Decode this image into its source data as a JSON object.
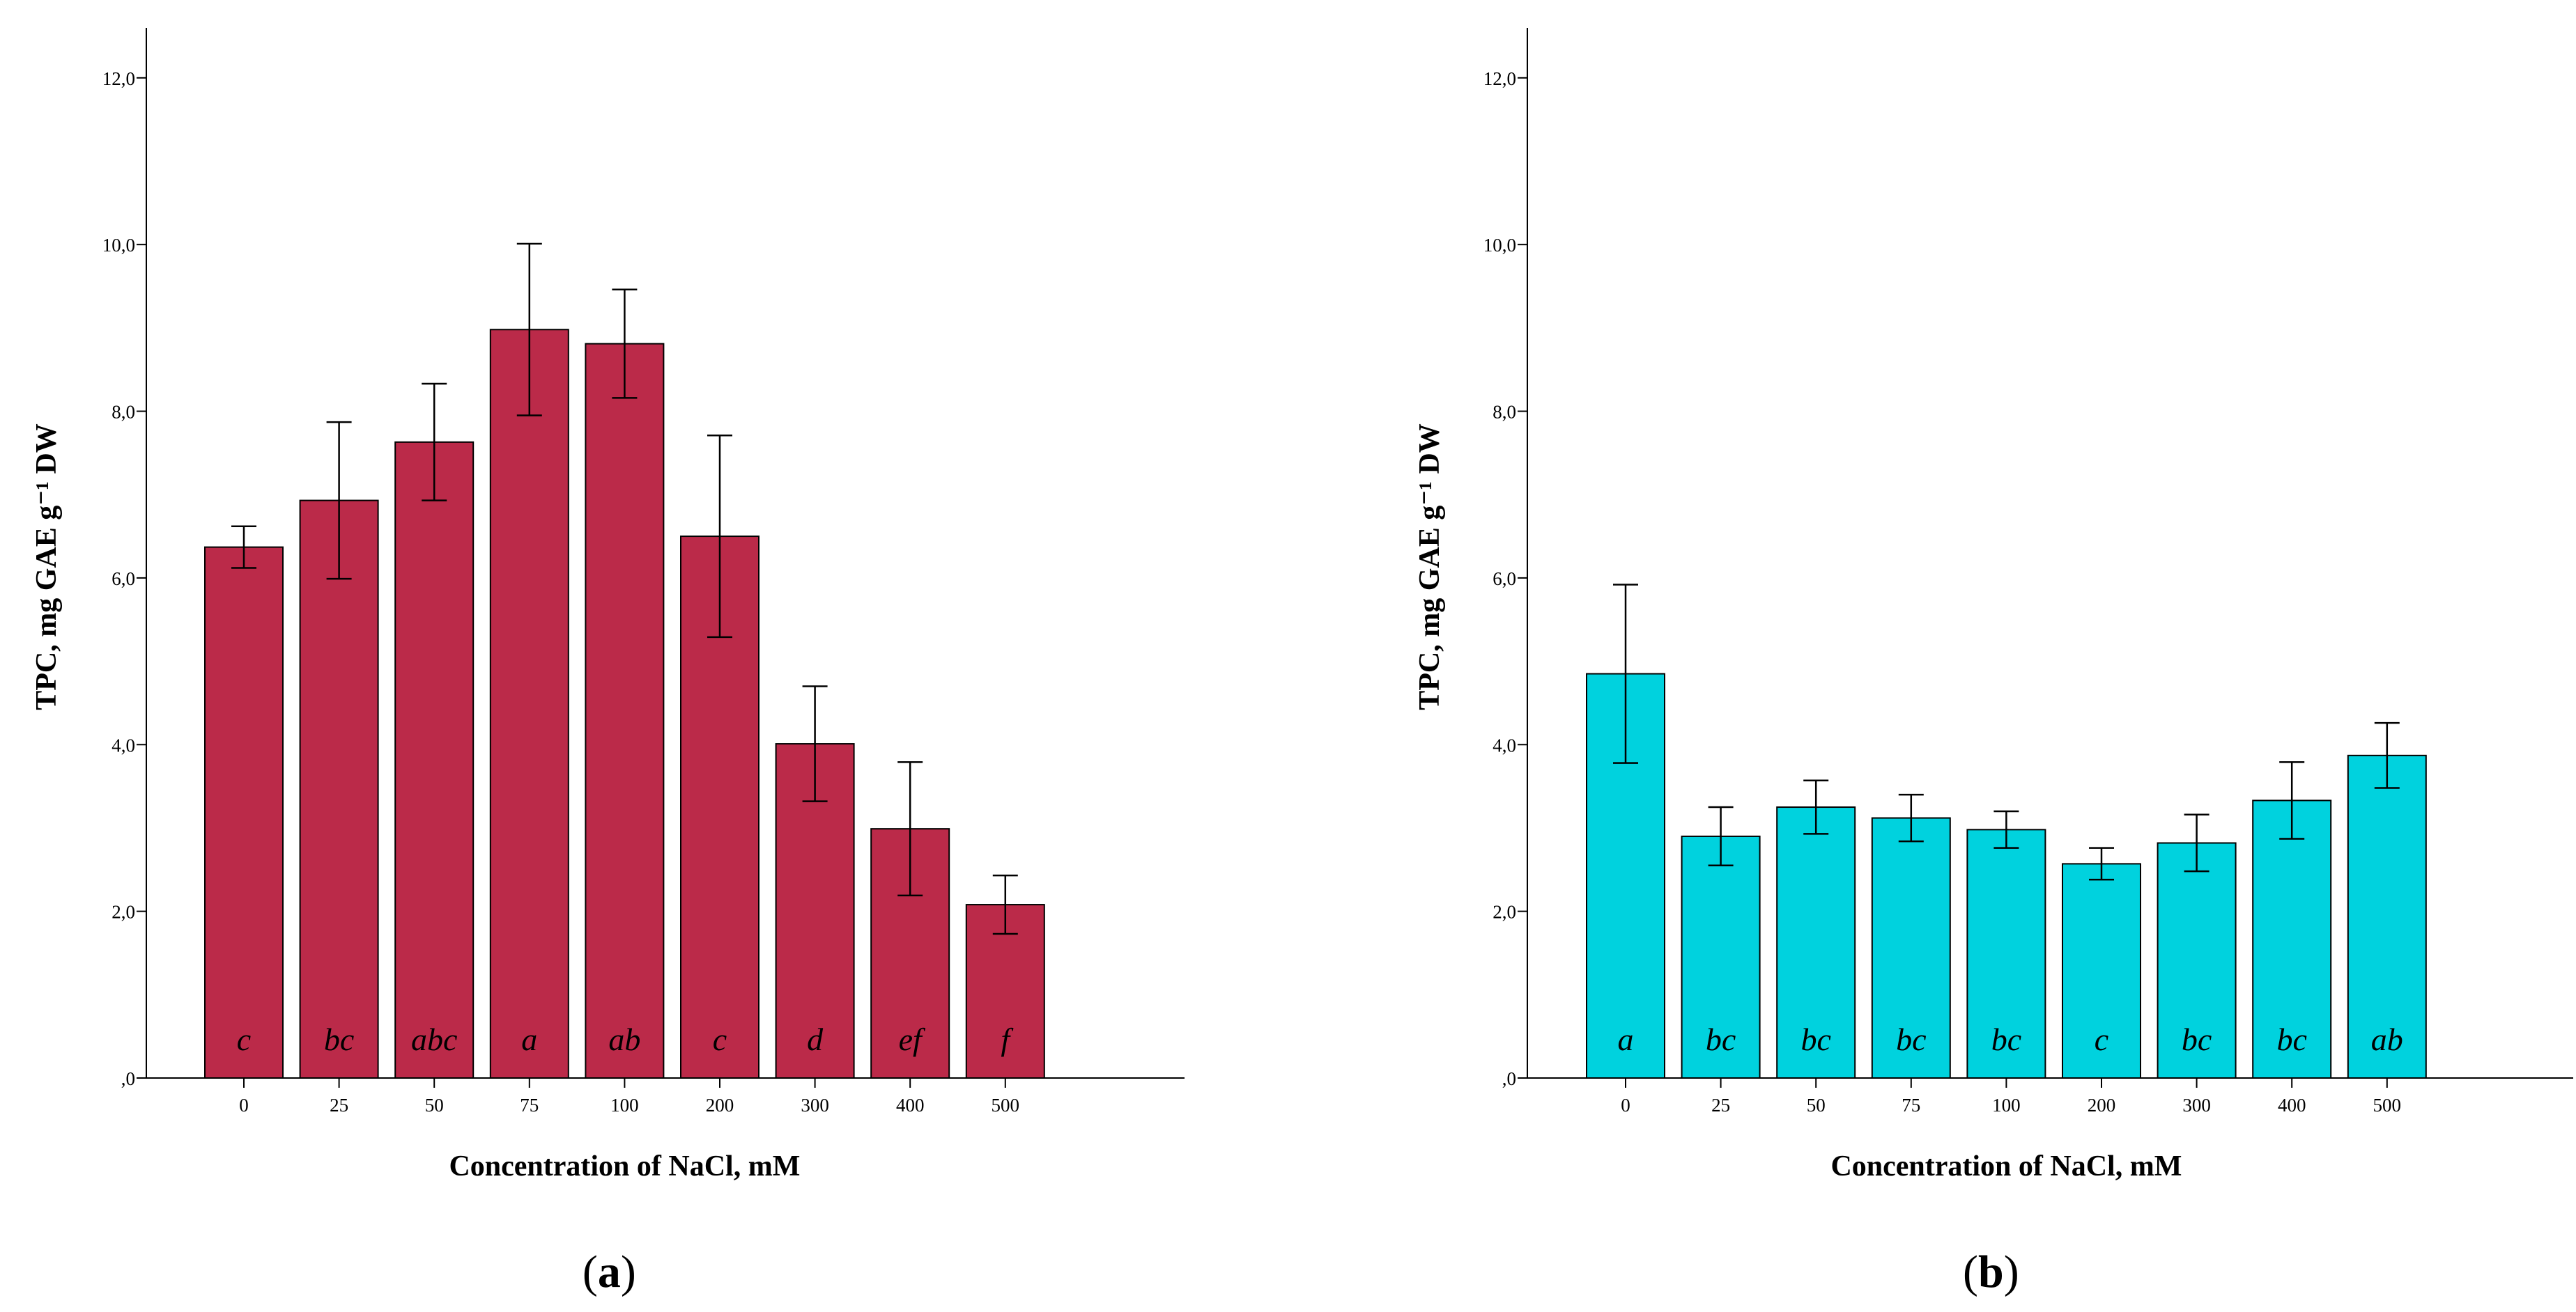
{
  "chart_data": [
    {
      "type": "bar",
      "panel_label": "a",
      "title": "",
      "xlabel": "Concentration of NaCl, mM",
      "ylabel": "TPC, mg GAE g⁻¹ DW",
      "ylim": [
        0,
        12.6
      ],
      "yticks": [
        {
          "value": 0,
          "label": ",0"
        },
        {
          "value": 2,
          "label": "2,0"
        },
        {
          "value": 4,
          "label": "4,0"
        },
        {
          "value": 6,
          "label": "6,0"
        },
        {
          "value": 8,
          "label": "8,0"
        },
        {
          "value": 10,
          "label": "10,0"
        },
        {
          "value": 12,
          "label": "12,0"
        }
      ],
      "categories": [
        "0",
        "25",
        "50",
        "75",
        "100",
        "200",
        "300",
        "400",
        "500"
      ],
      "values": [
        6.37,
        6.93,
        7.63,
        8.98,
        8.81,
        6.5,
        4.01,
        2.99,
        2.08
      ],
      "errors": [
        0.25,
        0.94,
        0.7,
        1.03,
        0.65,
        1.21,
        0.69,
        0.8,
        0.35
      ],
      "significance": [
        "c",
        "bc",
        "abc",
        "a",
        "ab",
        "c",
        "d",
        "ef",
        "f"
      ],
      "color": "#bb2a49"
    },
    {
      "type": "bar",
      "panel_label": "b",
      "title": "",
      "xlabel": "Concentration of NaCl, mM",
      "ylabel": "TPC, mg GAE g⁻¹ DW",
      "ylim": [
        0,
        12.6
      ],
      "yticks": [
        {
          "value": 0,
          "label": ",0"
        },
        {
          "value": 2,
          "label": "2,0"
        },
        {
          "value": 4,
          "label": "4,0"
        },
        {
          "value": 6,
          "label": "6,0"
        },
        {
          "value": 8,
          "label": "8,0"
        },
        {
          "value": 10,
          "label": "10,0"
        },
        {
          "value": 12,
          "label": "12,0"
        }
      ],
      "categories": [
        "0",
        "25",
        "50",
        "75",
        "100",
        "200",
        "300",
        "400",
        "500"
      ],
      "values": [
        4.85,
        2.9,
        3.25,
        3.12,
        2.98,
        2.57,
        2.82,
        3.33,
        3.87
      ],
      "errors": [
        1.07,
        0.35,
        0.32,
        0.28,
        0.22,
        0.19,
        0.34,
        0.46,
        0.39
      ],
      "significance": [
        "a",
        "bc",
        "bc",
        "bc",
        "bc",
        "c",
        "bc",
        "bc",
        "ab"
      ],
      "color": "#00d2de"
    }
  ]
}
